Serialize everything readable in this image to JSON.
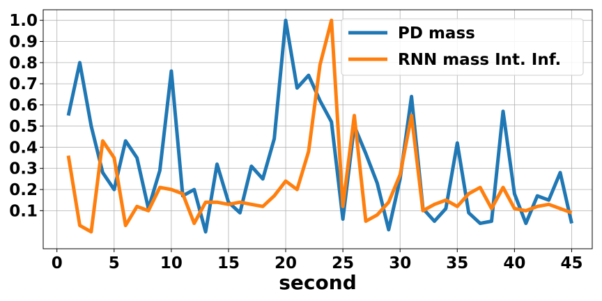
{
  "chart_data": {
    "type": "line",
    "xlabel": "second",
    "ylabel": "",
    "xlim": [
      -1.2,
      46.8
    ],
    "ylim": [
      -0.08,
      1.05
    ],
    "grid": true,
    "legend_position": "top-right",
    "xticks": [
      0,
      5,
      10,
      15,
      20,
      25,
      30,
      35,
      40,
      45
    ],
    "xtick_labels": [
      "0",
      "5",
      "10",
      "15",
      "20",
      "25",
      "30",
      "35",
      "40",
      "45"
    ],
    "yticks": [
      0.1,
      0.2,
      0.3,
      0.4,
      0.5,
      0.6,
      0.7,
      0.8,
      0.9,
      1.0
    ],
    "ytick_labels": [
      "0.1",
      "0.2",
      "0.3",
      "0.4",
      "0.5",
      "0.6",
      "0.7",
      "0.8",
      "0.9",
      "1.0"
    ],
    "x": [
      1,
      2,
      3,
      4,
      5,
      6,
      7,
      8,
      9,
      10,
      11,
      12,
      13,
      14,
      15,
      16,
      17,
      18,
      19,
      20,
      21,
      22,
      23,
      24,
      25,
      26,
      27,
      28,
      29,
      30,
      31,
      32,
      33,
      34,
      35,
      36,
      37,
      38,
      39,
      40,
      41,
      42,
      43,
      44,
      45
    ],
    "series": [
      {
        "name": "PD mass",
        "color": "#1f77b4",
        "values": [
          0.55,
          0.8,
          0.5,
          0.28,
          0.2,
          0.43,
          0.35,
          0.11,
          0.29,
          0.76,
          0.17,
          0.2,
          0.0,
          0.32,
          0.14,
          0.09,
          0.31,
          0.25,
          0.44,
          1.0,
          0.68,
          0.74,
          0.62,
          0.52,
          0.06,
          0.5,
          0.37,
          0.23,
          0.01,
          0.25,
          0.64,
          0.11,
          0.05,
          0.11,
          0.42,
          0.09,
          0.04,
          0.05,
          0.57,
          0.18,
          0.04,
          0.17,
          0.15,
          0.28,
          0.04
        ]
      },
      {
        "name": "RNN mass Int. Inf.",
        "color": "#ff7f0e",
        "values": [
          0.36,
          0.03,
          0.0,
          0.43,
          0.35,
          0.03,
          0.12,
          0.1,
          0.21,
          0.2,
          0.18,
          0.04,
          0.14,
          0.14,
          0.13,
          0.14,
          0.13,
          0.12,
          0.17,
          0.24,
          0.2,
          0.38,
          0.79,
          1.0,
          0.12,
          0.55,
          0.05,
          0.08,
          0.14,
          0.27,
          0.55,
          0.1,
          0.13,
          0.15,
          0.12,
          0.18,
          0.21,
          0.11,
          0.21,
          0.11,
          0.1,
          0.12,
          0.13,
          0.11,
          0.09
        ]
      }
    ]
  }
}
